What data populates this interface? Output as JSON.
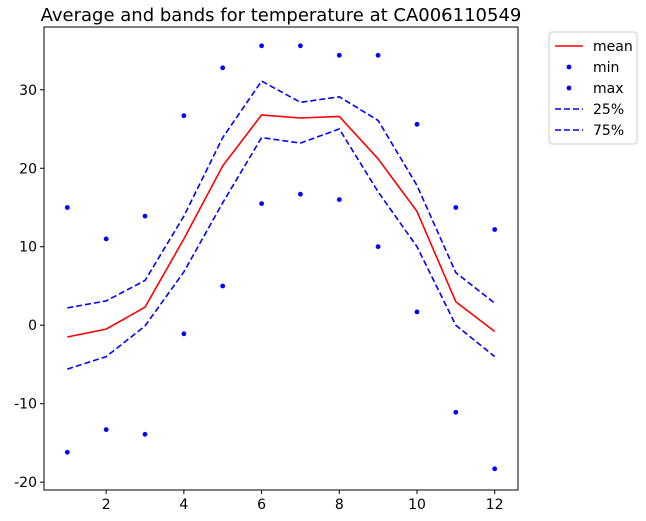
{
  "chart_data": {
    "type": "line",
    "title": "Average and bands for temperature at CA006110549",
    "xlabel": "",
    "ylabel": "",
    "x": [
      1,
      2,
      3,
      4,
      5,
      6,
      7,
      8,
      9,
      10,
      11,
      12
    ],
    "xlim": [
      0.4,
      12.6
    ],
    "ylim": [
      -21,
      38
    ],
    "xticks": [
      2,
      4,
      6,
      8,
      10,
      12
    ],
    "yticks": [
      -20,
      -10,
      0,
      10,
      20,
      30
    ],
    "grid": false,
    "legend_position": "outside top-right",
    "series": [
      {
        "name": "mean",
        "kind": "line",
        "style": "solid",
        "color": "#ff0000",
        "values": [
          -1.5,
          -0.5,
          2.3,
          11.0,
          20.3,
          26.8,
          26.4,
          26.6,
          21.2,
          14.5,
          3.0,
          -0.8
        ]
      },
      {
        "name": "min",
        "kind": "scatter",
        "color": "#0000ff",
        "values": [
          -16.2,
          -13.3,
          -13.9,
          -1.1,
          5.0,
          15.5,
          16.7,
          16.0,
          10.0,
          1.7,
          -11.1,
          -18.3
        ]
      },
      {
        "name": "max",
        "kind": "scatter",
        "color": "#0000ff",
        "values": [
          15.0,
          11.0,
          13.9,
          26.7,
          32.8,
          35.6,
          35.6,
          34.4,
          34.4,
          25.6,
          15.0,
          12.2
        ]
      },
      {
        "name": "25%",
        "kind": "line",
        "style": "dashed",
        "color": "#0000ff",
        "values": [
          -5.6,
          -4.0,
          -0.1,
          6.8,
          15.6,
          23.9,
          23.2,
          25.0,
          17.0,
          10.0,
          0.0,
          -4.0
        ]
      },
      {
        "name": "75%",
        "kind": "line",
        "style": "dashed",
        "color": "#0000ff",
        "values": [
          2.2,
          3.1,
          5.7,
          13.9,
          23.9,
          31.1,
          28.4,
          29.1,
          26.1,
          17.8,
          6.7,
          2.8
        ]
      }
    ]
  }
}
